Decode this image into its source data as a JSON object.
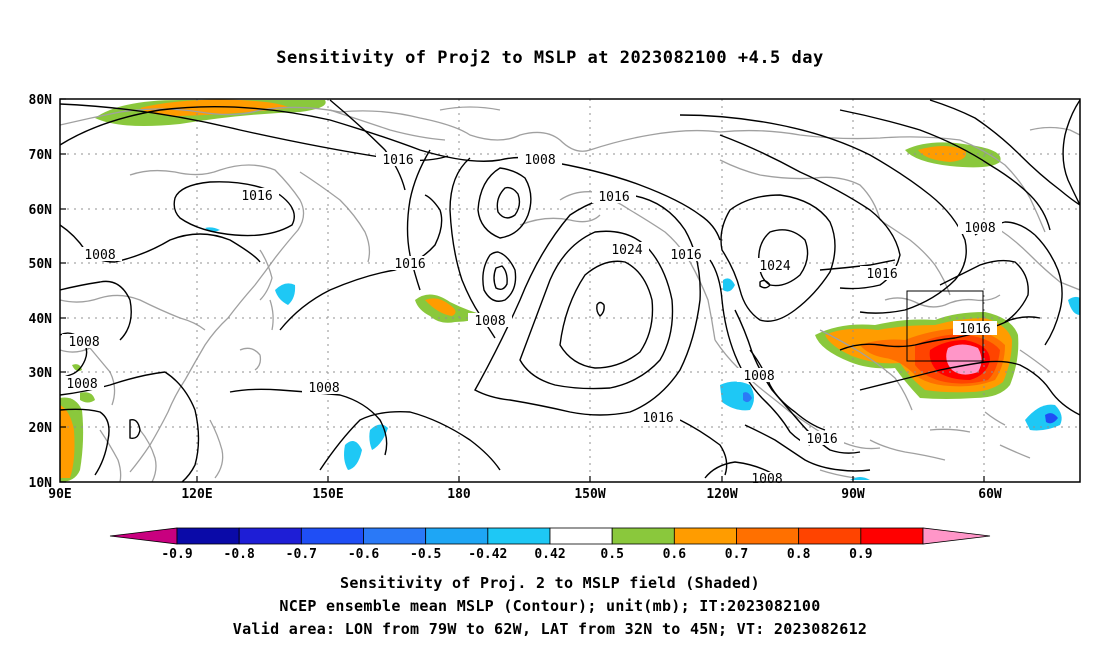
{
  "title": "Sensitivity of Proj2 to MSLP at 2023082100 +4.5 day",
  "map": {
    "lat_labels": [
      "80N",
      "70N",
      "60N",
      "50N",
      "40N",
      "30N",
      "20N",
      "10N"
    ],
    "lon_labels": [
      "90E",
      "120E",
      "150E",
      "180",
      "150W",
      "120W",
      "90W",
      "60W"
    ],
    "contour_labels": [
      "1016",
      "1008",
      "1016",
      "1016",
      "1024",
      "1016",
      "1024",
      "1016",
      "1008",
      "1008",
      "1016",
      "1008",
      "1008",
      "1008",
      "1016",
      "1008",
      "1008",
      "1016",
      "1008"
    ],
    "contour_color": "#000000",
    "coast_color": "#a0a0a0",
    "valid_area_box": {
      "lon": [
        -79,
        -62
      ],
      "lat": [
        32,
        45
      ]
    }
  },
  "colorbar": {
    "labels": [
      "-0.9",
      "-0.8",
      "-0.7",
      "-0.6",
      "-0.5",
      "-0.42",
      "0.42",
      "0.5",
      "0.6",
      "0.7",
      "0.8",
      "0.9"
    ],
    "colors": [
      "#c8007f",
      "#0a0aa8",
      "#1e1ed6",
      "#1f4ef5",
      "#2a79f7",
      "#1ea6f5",
      "#1ec8f5",
      "#ffffff",
      "#8ac83c",
      "#ff9c00",
      "#ff7000",
      "#ff4400",
      "#ff0000",
      "#ff96c8"
    ]
  },
  "footer": {
    "line1": "Sensitivity of Proj. 2 to MSLP field (Shaded)",
    "line2": "NCEP ensemble mean MSLP (Contour); unit(mb); IT:2023082100",
    "line3": "Valid area: LON from 79W to 62W, LAT from 32N to 45N; VT: 2023082612"
  }
}
